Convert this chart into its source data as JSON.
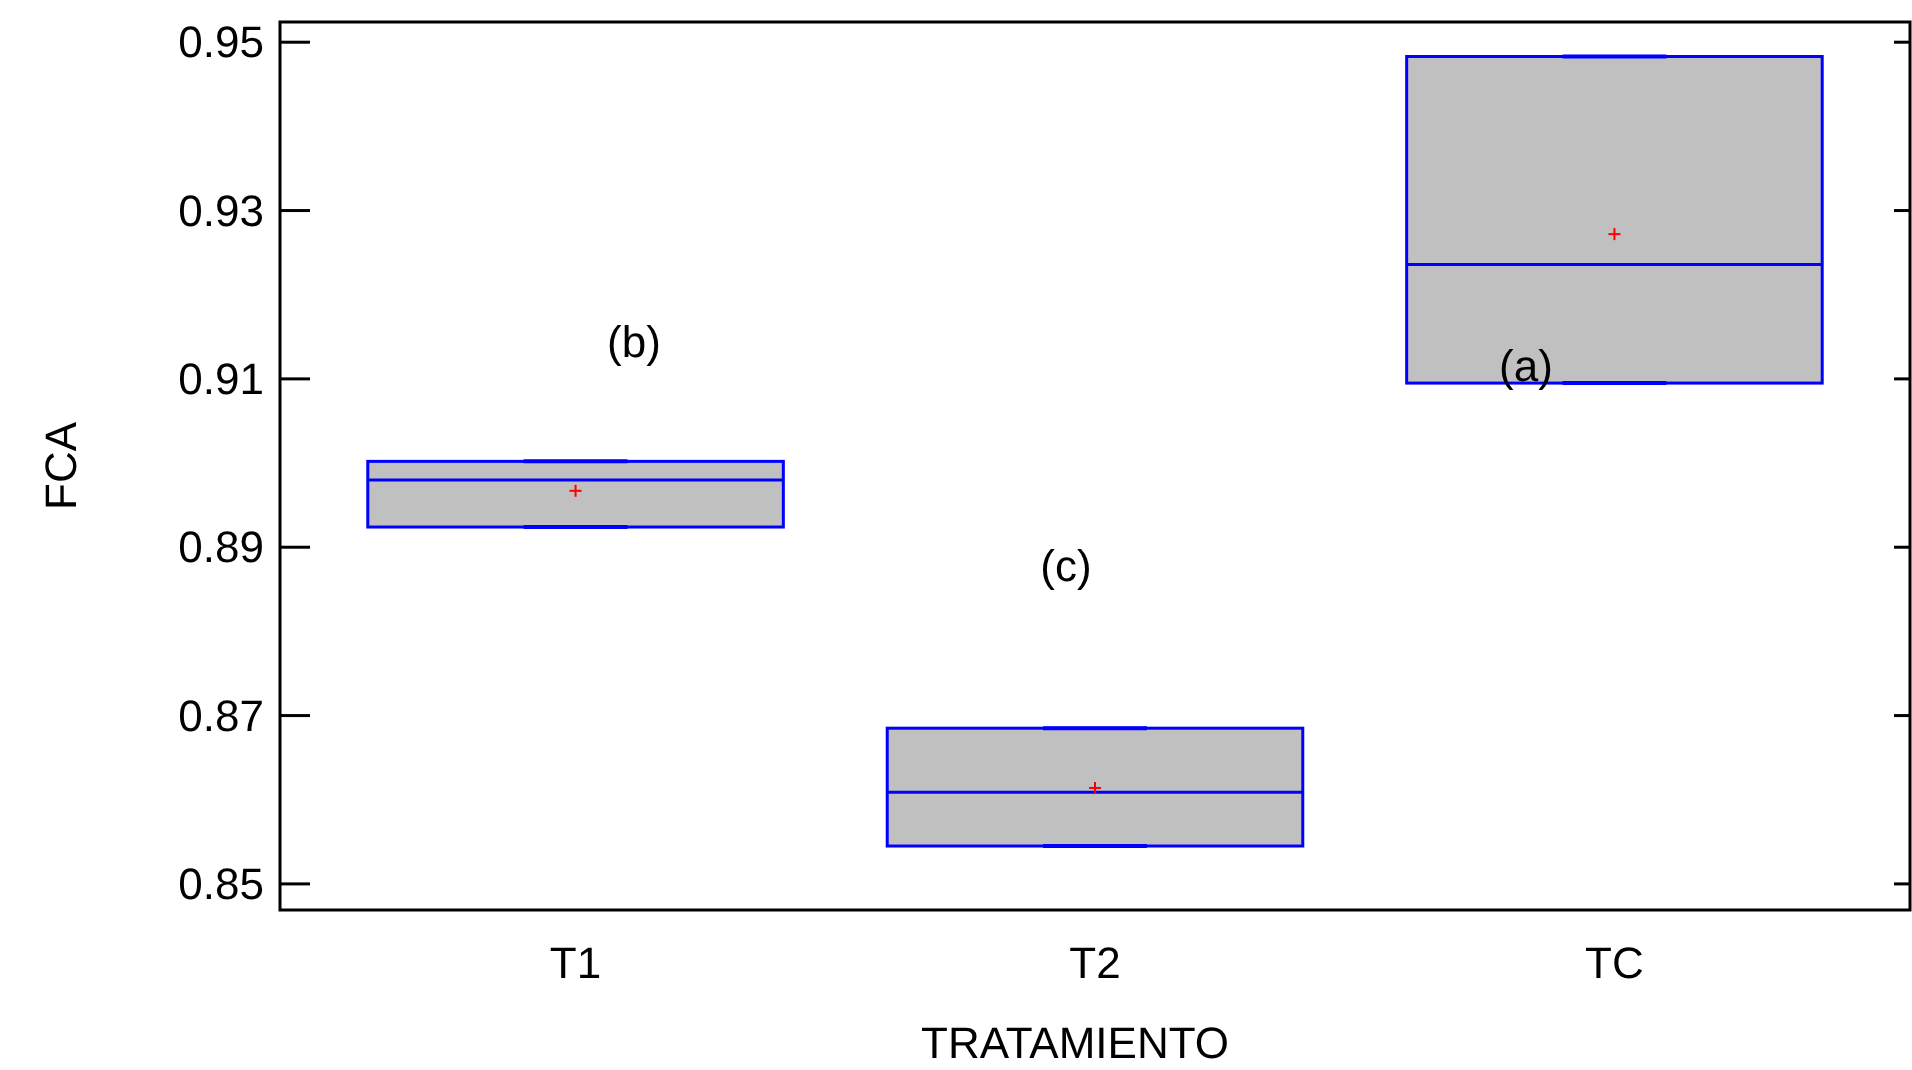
{
  "chart_data": {
    "type": "box",
    "xlabel": "TRATAMIENTO",
    "ylabel": "FCA",
    "categories": [
      "T1",
      "T2",
      "TC"
    ],
    "boxes": [
      {
        "low": 0.8924,
        "q1": 0.8924,
        "median": 0.898,
        "q3": 0.9002,
        "high": 0.9002,
        "mean": 0.8967
      },
      {
        "low": 0.8545,
        "q1": 0.8545,
        "median": 0.8609,
        "q3": 0.8685,
        "high": 0.8685,
        "mean": 0.8614
      },
      {
        "low": 0.9095,
        "q1": 0.9095,
        "median": 0.9236,
        "q3": 0.9483,
        "high": 0.9483,
        "mean": 0.9272
      }
    ],
    "color": "#c0c0c0",
    "ylim": [
      0.8469,
      0.9524
    ],
    "yticks": [
      {
        "value": 0.85,
        "label": "0.85"
      },
      {
        "value": 0.87,
        "label": "0.87"
      },
      {
        "value": 0.89,
        "label": "0.89"
      },
      {
        "value": 0.91,
        "label": "0.91"
      },
      {
        "value": 0.93,
        "label": "0.93"
      },
      {
        "value": 0.95,
        "label": "0.95"
      }
    ],
    "grid": false,
    "annotations": [
      "(b)",
      "(c)",
      "(a)"
    ]
  }
}
